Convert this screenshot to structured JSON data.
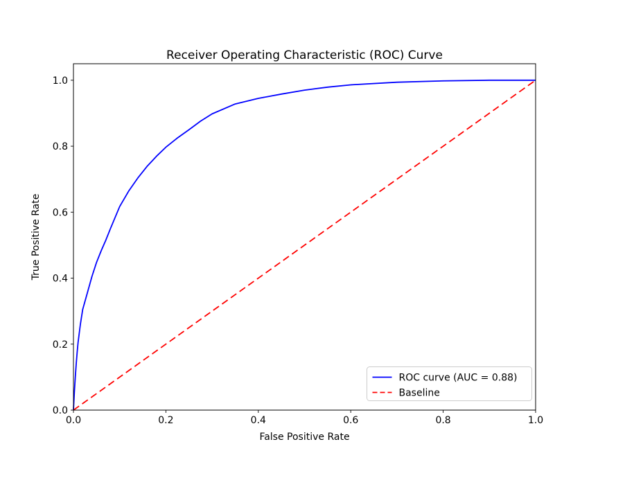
{
  "chart_data": {
    "type": "line",
    "title": "Receiver Operating Characteristic (ROC) Curve",
    "xlabel": "False Positive Rate",
    "ylabel": "True Positive Rate",
    "xlim": [
      0.0,
      1.0
    ],
    "ylim": [
      0.0,
      1.05
    ],
    "xticks": [
      0.0,
      0.2,
      0.4,
      0.6,
      0.8,
      1.0
    ],
    "yticks": [
      0.0,
      0.2,
      0.4,
      0.6,
      0.8,
      1.0
    ],
    "tick_decimals": 1,
    "grid": false,
    "legend_position": "lower right",
    "auc": 0.88,
    "series": [
      {
        "name": "ROC curve (AUC = 0.88)",
        "color": "#0000ff",
        "style": "solid",
        "x": [
          0.0,
          0.002,
          0.004,
          0.006,
          0.008,
          0.01,
          0.015,
          0.02,
          0.03,
          0.04,
          0.05,
          0.06,
          0.07,
          0.08,
          0.1,
          0.12,
          0.14,
          0.16,
          0.18,
          0.2,
          0.225,
          0.25,
          0.275,
          0.3,
          0.35,
          0.4,
          0.45,
          0.5,
          0.55,
          0.6,
          0.7,
          0.8,
          0.9,
          1.0
        ],
        "y": [
          0.0,
          0.055,
          0.1,
          0.14,
          0.175,
          0.205,
          0.26,
          0.305,
          0.355,
          0.405,
          0.448,
          0.483,
          0.515,
          0.55,
          0.617,
          0.665,
          0.705,
          0.74,
          0.77,
          0.797,
          0.825,
          0.85,
          0.876,
          0.898,
          0.928,
          0.945,
          0.958,
          0.97,
          0.979,
          0.986,
          0.994,
          0.998,
          1.0,
          1.0
        ]
      },
      {
        "name": "Baseline",
        "color": "#ff0000",
        "style": "dashed",
        "x": [
          0.0,
          1.0
        ],
        "y": [
          0.0,
          1.0
        ]
      }
    ]
  },
  "colors": {
    "roc_line": "#0000ff",
    "baseline": "#ff0000",
    "spine": "#000000",
    "legend_border": "#cccccc",
    "background": "#ffffff"
  }
}
